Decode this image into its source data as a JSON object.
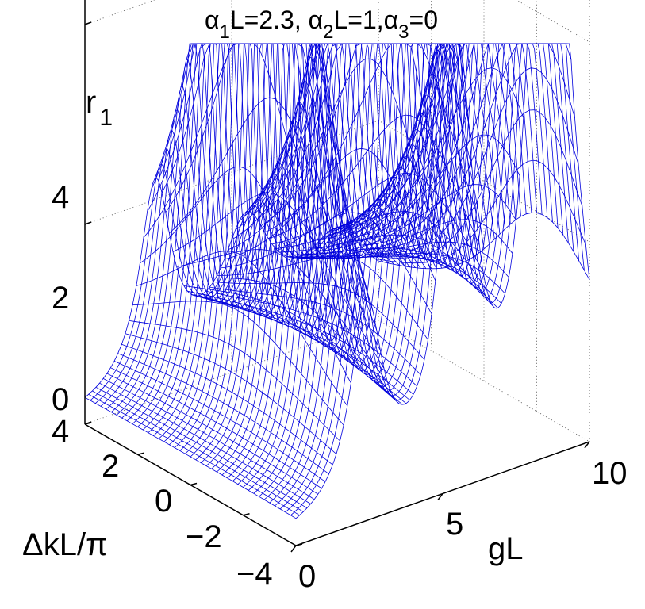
{
  "chart_data": {
    "type": "surface",
    "title": {
      "parts": [
        {
          "t": "α",
          "sub": "1",
          "rest": "L=2.3, "
        },
        {
          "t": "α",
          "sub": "2",
          "rest": "L=1,"
        },
        {
          "t": "α",
          "sub": "3",
          "rest": "=0"
        }
      ]
    },
    "zlabel": {
      "main": "r",
      "sub": "1"
    },
    "xlabel": "gL",
    "ylabel": "ΔkL/π",
    "xlim": [
      0,
      10
    ],
    "ylim": [
      -4,
      4
    ],
    "zlim": [
      0,
      5
    ],
    "x_ticks": [
      {
        "v": 0,
        "label": "0"
      },
      {
        "v": 5,
        "label": "5"
      },
      {
        "v": 10,
        "label": "10"
      }
    ],
    "y_ticks": [
      {
        "v": -4,
        "label": "−4"
      },
      {
        "v": -2,
        "label": "−2"
      },
      {
        "v": 0,
        "label": "0"
      },
      {
        "v": 2,
        "label": "2"
      },
      {
        "v": 4,
        "label": "4"
      }
    ],
    "z_ticks": [
      {
        "v": 0,
        "label": "0"
      },
      {
        "v": 2,
        "label": "2"
      },
      {
        "v": 4,
        "label": "4"
      }
    ],
    "mesh_color": "#0000dd",
    "grid": true,
    "resonance_gL": [
      2.4,
      5.5,
      8.6
    ],
    "resonance_tails_y": [
      0,
      -1.5,
      -3
    ]
  }
}
